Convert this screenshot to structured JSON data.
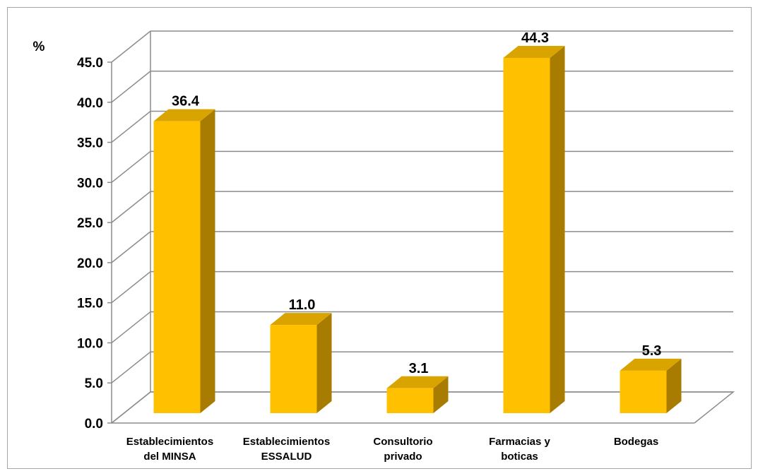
{
  "chart_data": {
    "type": "bar",
    "ylabel": "%",
    "categories": [
      [
        "Establecimientos",
        "del MINSA"
      ],
      [
        "Establecimientos",
        "ESSALUD"
      ],
      [
        "Consultorio",
        "privado"
      ],
      [
        "Farmacias y",
        "boticas"
      ],
      [
        "Bodegas"
      ]
    ],
    "values": [
      36.4,
      11.0,
      3.1,
      44.3,
      5.3
    ],
    "value_labels": [
      "36.4",
      "11.0",
      "3.1",
      "44.3",
      "5.3"
    ],
    "ylim": [
      0,
      45
    ],
    "yticks": [
      "0.0",
      "5.0",
      "10.0",
      "15.0",
      "20.0",
      "25.0",
      "30.0",
      "35.0",
      "40.0",
      "45.0"
    ],
    "grid": true,
    "style": "3d-column",
    "colors": {
      "bar_front": "#ffc000",
      "bar_top": "#d9a400",
      "bar_side": "#a77c00",
      "grid": "#8c8c8c"
    }
  }
}
